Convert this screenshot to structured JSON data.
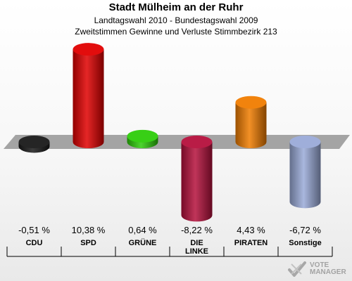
{
  "header": {
    "title": "Stadt Mülheim an der Ruhr",
    "subtitle1": "Landtagswahl 2010 - Bundestagswahl 2009",
    "subtitle2": "Zweitstimmen Gewinne und Verluste Stimmbezirk 213"
  },
  "watermark": {
    "text": "VOTE MANAGER",
    "icon": "vote-check-icon"
  },
  "chart_data": {
    "type": "bar",
    "categories": [
      "CDU",
      "SPD",
      "GRÜNE",
      "DIE LINKE",
      "PIRATEN",
      "Sonstige"
    ],
    "values": [
      -0.51,
      10.38,
      0.64,
      -8.22,
      4.43,
      -6.72
    ],
    "value_labels": [
      "-0,51 %",
      "10,38 %",
      "0,64 %",
      "-8,22 %",
      "4,43 %",
      "-6,72 %"
    ],
    "colors": [
      "#1a1a1a",
      "#e00000",
      "#2ecc0a",
      "#b5103c",
      "#f07c00",
      "#9aaad8"
    ],
    "unit": "%",
    "title": "Stadt Mülheim an der Ruhr",
    "xlabel": "",
    "ylabel": "",
    "ylim": [
      -10,
      12
    ],
    "grid": false,
    "legend": "none"
  }
}
